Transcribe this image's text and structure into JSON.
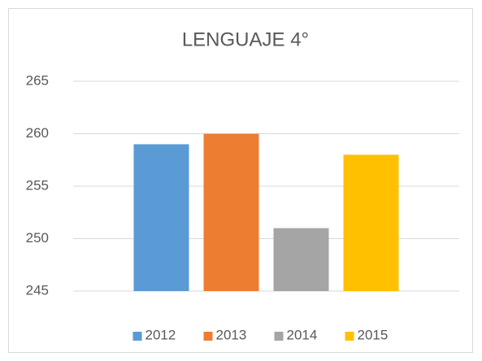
{
  "chart_data": {
    "type": "bar",
    "title": "LENGUAJE 4°",
    "categories": [
      null
    ],
    "series": [
      {
        "name": "2012",
        "color": "#5b9bd5",
        "values": [
          259
        ]
      },
      {
        "name": "2013",
        "color": "#ed7d31",
        "values": [
          260
        ]
      },
      {
        "name": "2014",
        "color": "#a5a5a5",
        "values": [
          251
        ]
      },
      {
        "name": "2015",
        "color": "#ffc000",
        "values": [
          258
        ]
      }
    ],
    "ylim": [
      245,
      265
    ],
    "yticks": [
      245,
      250,
      255,
      260,
      265
    ],
    "grid": true,
    "legend": "bottom"
  }
}
